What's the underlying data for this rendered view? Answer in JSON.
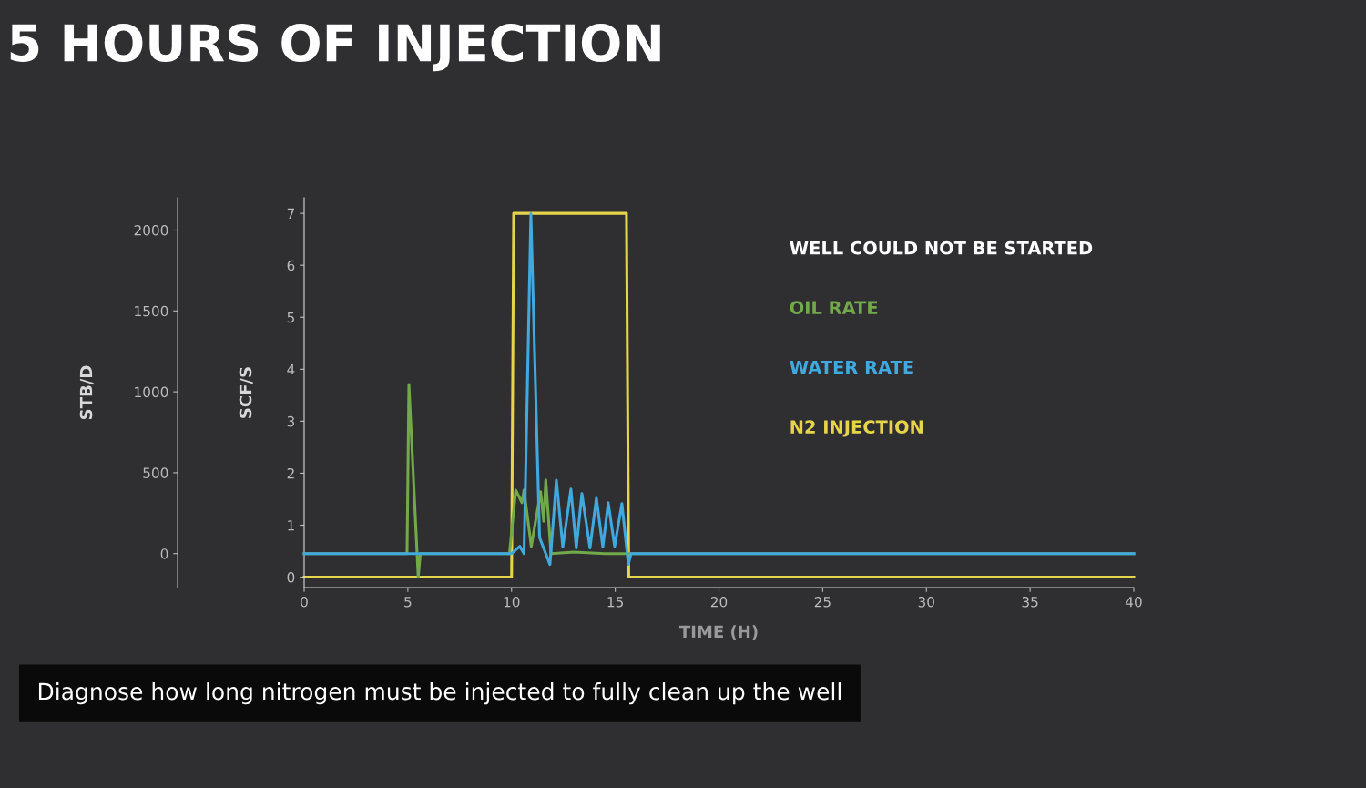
{
  "chart_data": {
    "type": "line",
    "title": "5 HOURS OF INJECTION",
    "xlabel": "TIME (H)",
    "ylabel": "SCF/S",
    "y2label": "STB/D",
    "legend_title": "WELL COULD NOT BE STARTED",
    "annotations": [
      "Diagnose how long nitrogen must be injected to fully clean up the well"
    ],
    "xlim": [
      0,
      40
    ],
    "xticks": [
      0,
      5,
      10,
      15,
      20,
      25,
      30,
      35,
      40
    ],
    "ylim": [
      -0.2,
      7.3
    ],
    "yticks": [
      0,
      1,
      2,
      3,
      4,
      5,
      6,
      7
    ],
    "y2lim": [
      -210,
      2200
    ],
    "y2ticks": [
      0,
      500,
      1000,
      1500,
      2000
    ],
    "grid": false,
    "legend": "top right",
    "marker": "none",
    "line_style": "solid",
    "series": [
      {
        "name": "OIL RATE",
        "color": "#72a94a",
        "axis": "y2",
        "x": [
          0,
          4.96,
          5.05,
          5.5,
          5.6,
          9.9,
          10.2,
          10.5,
          10.6,
          10.95,
          11.4,
          11.55,
          11.65,
          11.9,
          13,
          14.5,
          20,
          40
        ],
        "values": [
          0,
          0,
          1045,
          -146,
          0,
          0,
          393,
          315,
          393,
          45,
          382,
          200,
          455,
          0,
          10,
          0,
          0,
          0
        ]
      },
      {
        "name": "WATER RATE",
        "color": "#3fa9e0",
        "axis": "y2",
        "x": [
          0,
          10.0,
          10.4,
          10.6,
          10.93,
          11.35,
          11.85,
          12.16,
          12.47,
          12.86,
          13.12,
          13.39,
          13.78,
          14.09,
          14.4,
          14.66,
          14.97,
          15.32,
          15.63,
          15.76,
          40
        ],
        "values": [
          0,
          0,
          45,
          0,
          2101,
          100,
          -67,
          455,
          40,
          399,
          35,
          371,
          35,
          343,
          40,
          315,
          45,
          309,
          -67,
          0,
          0
        ]
      },
      {
        "name": "N2 INJECTION",
        "color": "#e6d54a",
        "x": [
          0,
          10.0,
          10.1,
          15.54,
          15.65,
          40
        ],
        "values": [
          0,
          0,
          7,
          7,
          0,
          0
        ]
      }
    ]
  }
}
